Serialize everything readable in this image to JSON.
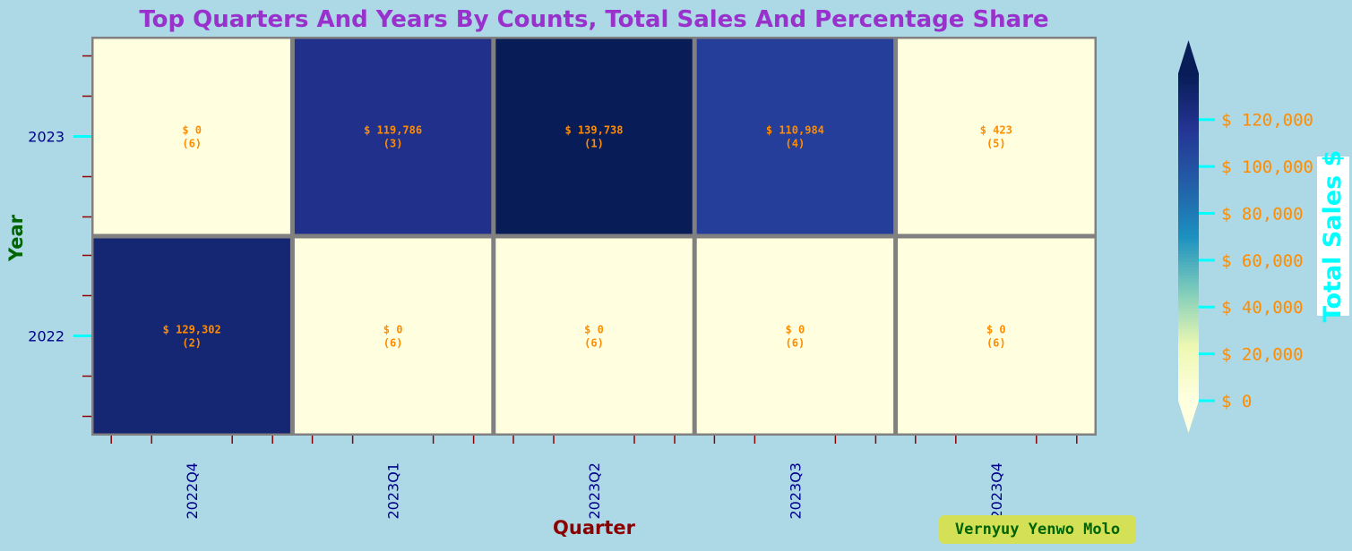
{
  "chart_data": {
    "type": "heatmap",
    "title": "Top Quarters And Years By Counts, Total Sales And Percentage Share",
    "xlabel": "Quarter",
    "ylabel": "Year",
    "x_categories": [
      "2022Q4",
      "2023Q1",
      "2023Q2",
      "2023Q3",
      "2023Q4"
    ],
    "y_categories": [
      "2023",
      "2022"
    ],
    "values": [
      [
        0,
        119786,
        139738,
        110984,
        423
      ],
      [
        129302,
        0,
        0,
        0,
        0
      ]
    ],
    "cell_labels": [
      [
        "$ 0",
        "$ 119,786",
        "$ 139,738",
        "$ 110,984",
        "$ 423"
      ],
      [
        "$ 129,302",
        "$ 0",
        "$ 0",
        "$ 0",
        "$ 0"
      ]
    ],
    "ranks": [
      [
        "(6)",
        "(3)",
        "(1)",
        "(4)",
        "(5)"
      ],
      [
        "(2)",
        "(6)",
        "(6)",
        "(6)",
        "(6)"
      ]
    ],
    "colorbar": {
      "label": "Total Sales $",
      "ticks": [
        0,
        20000,
        40000,
        60000,
        80000,
        100000,
        120000
      ],
      "tick_labels": [
        "$ 0",
        "$ 20,000",
        "$ 40,000",
        "$ 60,000",
        "$ 80,000",
        "$ 100,000",
        "$ 120,000"
      ],
      "range": [
        0,
        139738
      ],
      "extend": "both"
    },
    "colormap": [
      "#ffffe0",
      "#edf8b1",
      "#7fcdbb",
      "#1d91c0",
      "#225ea8",
      "#253494",
      "#081d58"
    ],
    "colors": {
      "title": "#9932cc",
      "xlabel": "#8b0000",
      "ylabel": "#006400",
      "tick_labels": "#00008b",
      "major_ticks": "#00ffff",
      "minor_ticks": "#8b0000",
      "cell_text": "#ff8c00",
      "colorbar_text": "#ff8c00",
      "colorbar_label": "#00ffff",
      "grid": "#808080"
    }
  },
  "credit": "Vernyuy Yenwo Molo"
}
